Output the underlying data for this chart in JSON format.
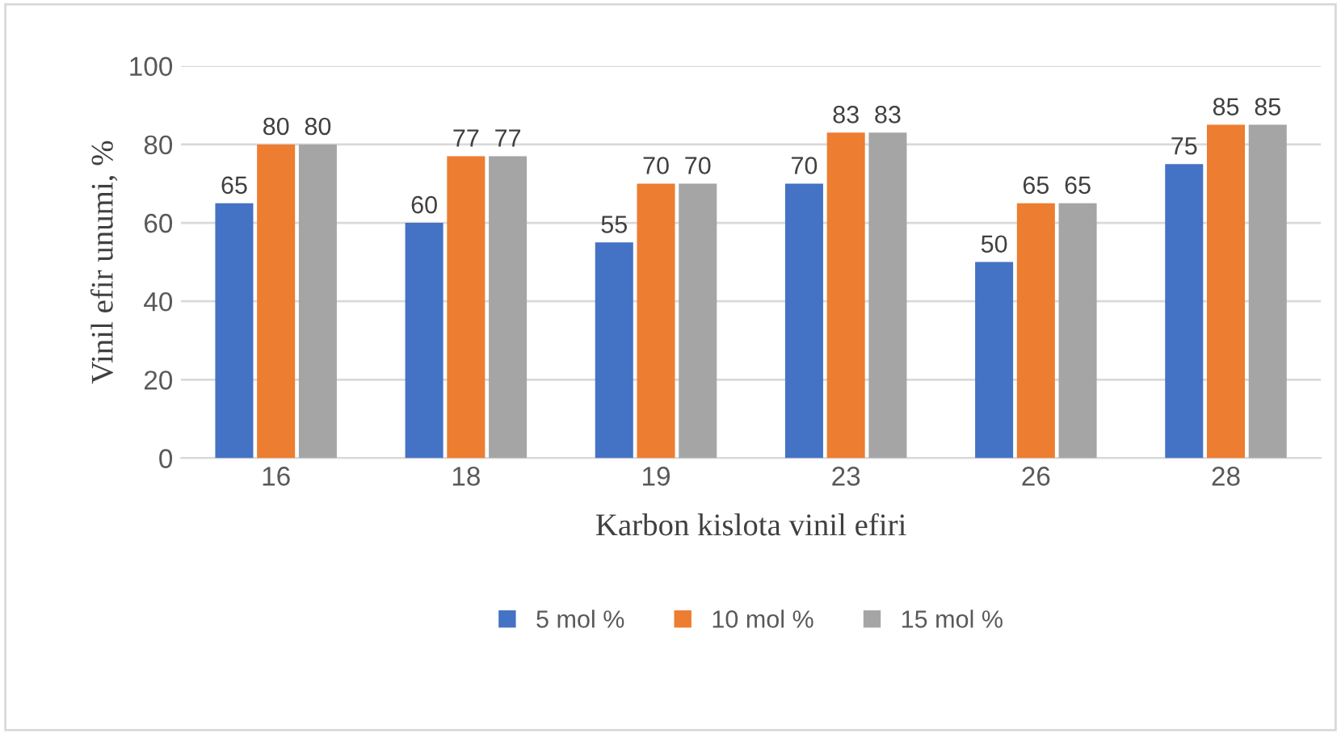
{
  "chart_data": {
    "type": "bar",
    "xlabel": "Karbon kislota vinil efiri",
    "ylabel": "Vinil efir unumi, %",
    "categories": [
      "16",
      "18",
      "19",
      "23",
      "26",
      "28"
    ],
    "series": [
      {
        "name": "5 mol %",
        "color": "#4472c4",
        "values": [
          65,
          60,
          55,
          70,
          50,
          75
        ]
      },
      {
        "name": "10 mol %",
        "color": "#ed7d31",
        "values": [
          80,
          77,
          70,
          83,
          65,
          85
        ]
      },
      {
        "name": "15 mol %",
        "color": "#a5a5a5",
        "values": [
          80,
          77,
          70,
          83,
          65,
          85
        ]
      }
    ],
    "ylim": [
      0,
      100
    ],
    "yticks": [
      0,
      20,
      40,
      60,
      80,
      100
    ],
    "grid": "y",
    "legend": "bottom",
    "data_labels": true
  }
}
